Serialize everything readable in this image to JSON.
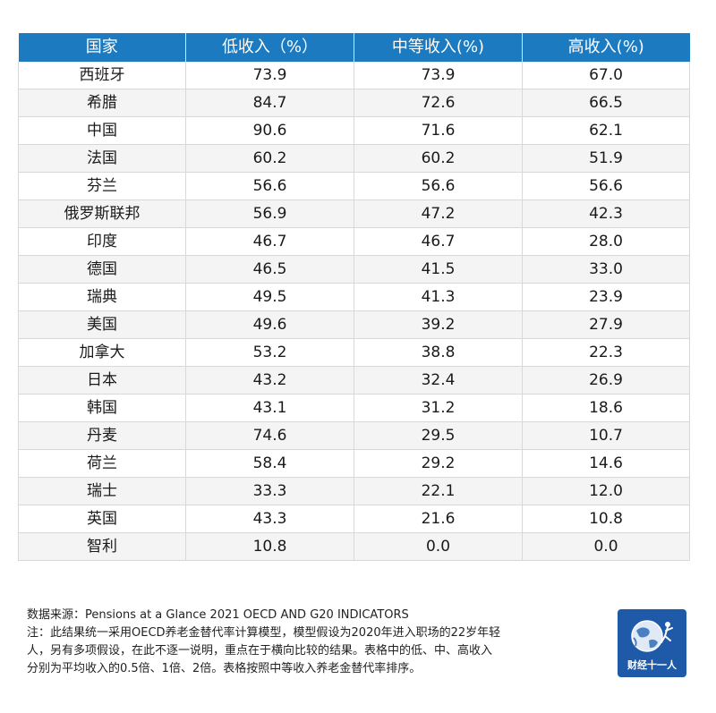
{
  "table": {
    "headers": [
      "国家",
      "低收入（%）",
      "中等收入(%)",
      "高收入(%)"
    ],
    "rows": [
      [
        "西班牙",
        "73.9",
        "73.9",
        "67.0"
      ],
      [
        "希腊",
        "84.7",
        "72.6",
        "66.5"
      ],
      [
        "中国",
        "90.6",
        "71.6",
        "62.1"
      ],
      [
        "法国",
        "60.2",
        "60.2",
        "51.9"
      ],
      [
        "芬兰",
        "56.6",
        "56.6",
        "56.6"
      ],
      [
        "俄罗斯联邦",
        "56.9",
        "47.2",
        "42.3"
      ],
      [
        "印度",
        "46.7",
        "46.7",
        "28.0"
      ],
      [
        "德国",
        "46.5",
        "41.5",
        "33.0"
      ],
      [
        "瑞典",
        "49.5",
        "41.3",
        "23.9"
      ],
      [
        "美国",
        "49.6",
        "39.2",
        "27.9"
      ],
      [
        "加拿大",
        "53.2",
        "38.8",
        "22.3"
      ],
      [
        "日本",
        "43.2",
        "32.4",
        "26.9"
      ],
      [
        "韩国",
        "43.1",
        "31.2",
        "18.6"
      ],
      [
        "丹麦",
        "74.6",
        "29.5",
        "10.7"
      ],
      [
        "荷兰",
        "58.4",
        "29.2",
        "14.6"
      ],
      [
        "瑞士",
        "33.3",
        "22.1",
        "12.0"
      ],
      [
        "英国",
        "43.3",
        "21.6",
        "10.8"
      ],
      [
        "智利",
        "10.8",
        "0.0",
        "0.0"
      ]
    ]
  },
  "footnote": {
    "source": "数据来源：Pensions at a Glance 2021 OECD AND G20 INDICATORS",
    "note_line1": "注：此结果统一采用OECD养老金替代率计算模型，模型假设为2020年进入职场的22岁年轻",
    "note_line2": "人，另有多项假设，在此不逐一说明，重点在于横向比较的结果。表格中的低、中、高收入",
    "note_line3": "分别为平均收入的0.5倍、1倍、2倍。表格按照中等收入养老金替代率排序。"
  },
  "logo": {
    "text": "财经十一人",
    "background": "#1e5aa8"
  },
  "colors": {
    "header_background": "#1b7ac0",
    "header_text": "#ffffff",
    "stripe": "#f4f4f4",
    "grid": "#d8d8d8"
  }
}
